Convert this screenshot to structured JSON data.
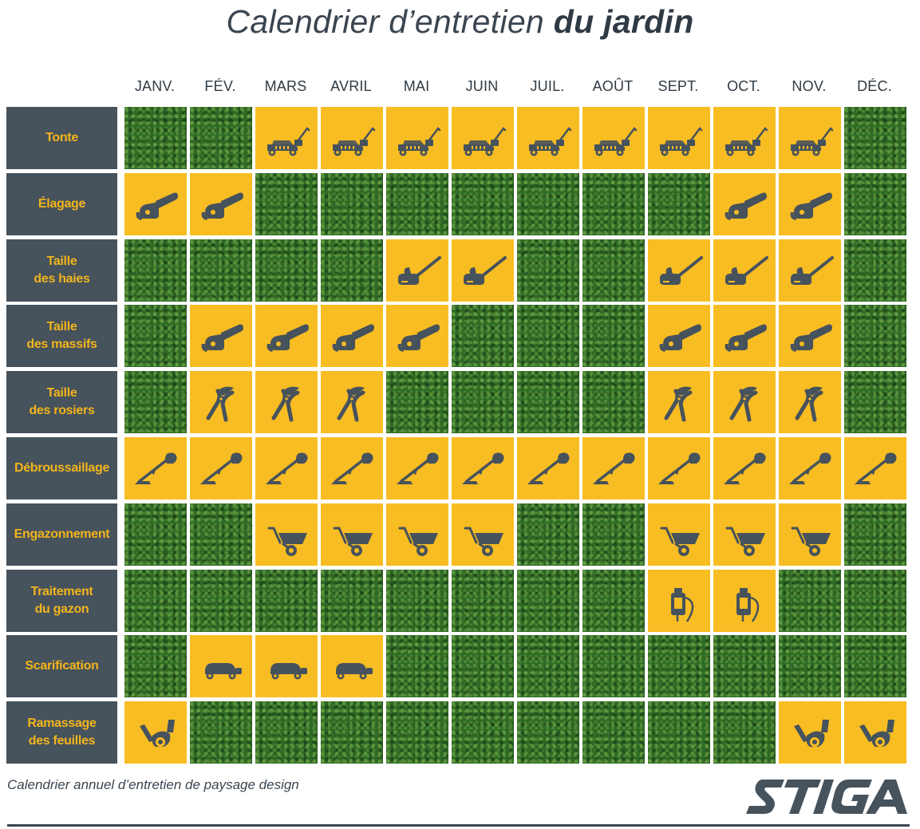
{
  "title": {
    "part1": "Calendrier d’entretien ",
    "part2": "du jardin"
  },
  "months": [
    "JANV.",
    "FÉV.",
    "MARS",
    "AVRIL",
    "MAI",
    "JUIN",
    "JUIL.",
    "AOÛT",
    "SEPT.",
    "OCT.",
    "NOV.",
    "DÉC."
  ],
  "colors": {
    "active": "#f8bd22",
    "label_bg": "#46525c",
    "label_text": "#f2b51b",
    "icon": "#46525c",
    "grass": "#2f6a25"
  },
  "tasks": [
    {
      "label": "Tonte",
      "icon": "lawnmower-icon",
      "months": [
        0,
        0,
        1,
        1,
        1,
        1,
        1,
        1,
        1,
        1,
        1,
        0
      ]
    },
    {
      "label": "Élagage",
      "icon": "chainsaw-icon",
      "months": [
        1,
        1,
        0,
        0,
        0,
        0,
        0,
        0,
        0,
        1,
        1,
        0
      ]
    },
    {
      "label": "Taille\ndes haies",
      "icon": "hedge-trimmer-icon",
      "months": [
        0,
        0,
        0,
        0,
        1,
        1,
        0,
        0,
        1,
        1,
        1,
        0
      ]
    },
    {
      "label": "Taille\ndes massifs",
      "icon": "chainsaw-icon",
      "months": [
        0,
        1,
        1,
        1,
        1,
        0,
        0,
        0,
        1,
        1,
        1,
        0
      ]
    },
    {
      "label": "Taille\ndes rosiers",
      "icon": "pruning-shears-icon",
      "months": [
        0,
        1,
        1,
        1,
        0,
        0,
        0,
        0,
        1,
        1,
        1,
        0
      ]
    },
    {
      "label": "Débroussaillage",
      "icon": "brush-cutter-icon",
      "months": [
        1,
        1,
        1,
        1,
        1,
        1,
        1,
        1,
        1,
        1,
        1,
        1
      ]
    },
    {
      "label": "Engazonnement",
      "icon": "wheelbarrow-icon",
      "months": [
        0,
        0,
        1,
        1,
        1,
        1,
        0,
        0,
        1,
        1,
        1,
        0
      ]
    },
    {
      "label": "Traitement\ndu gazon",
      "icon": "sprayer-icon",
      "months": [
        0,
        0,
        0,
        0,
        0,
        0,
        0,
        0,
        1,
        1,
        0,
        0
      ]
    },
    {
      "label": "Scarification",
      "icon": "scarifier-icon",
      "months": [
        0,
        1,
        1,
        1,
        0,
        0,
        0,
        0,
        0,
        0,
        0,
        0
      ]
    },
    {
      "label": "Ramassage\ndes feuilles",
      "icon": "leaf-blower-icon",
      "months": [
        1,
        0,
        0,
        0,
        0,
        0,
        0,
        0,
        0,
        0,
        1,
        1
      ]
    }
  ],
  "caption": "Calendrier annuel d’entretien de paysage design",
  "logo": {
    "text": "STIGA"
  }
}
